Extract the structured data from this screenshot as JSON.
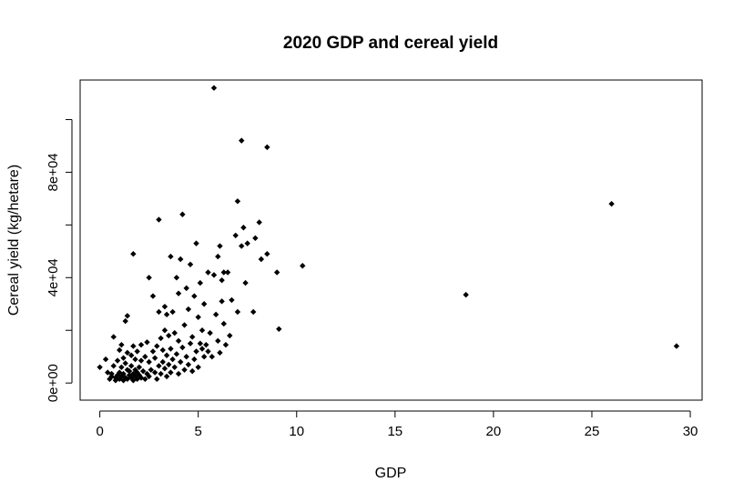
{
  "chart_data": {
    "type": "scatter",
    "title": "2020 GDP and cereal yield",
    "xlabel": "GDP",
    "ylabel": "Cereal yield (kg/hetare)",
    "xlim": [
      -1,
      30.6
    ],
    "ylim": [
      -6500,
      115000
    ],
    "x_ticks": [
      0,
      5,
      10,
      15,
      20,
      25,
      30
    ],
    "x_tick_labels": [
      "0",
      "5",
      "10",
      "15",
      "20",
      "25",
      "30"
    ],
    "y_ticks": [
      0,
      40000,
      80000
    ],
    "y_tick_labels": [
      "0e+00",
      "4e+04",
      "8e+04"
    ],
    "y_minor_ticks": [
      20000,
      60000,
      100000
    ],
    "grid": false,
    "legend": "none",
    "marker_color": "#000000",
    "points": [
      [
        0.0,
        6000
      ],
      [
        0.3,
        9000
      ],
      [
        0.4,
        4000
      ],
      [
        0.5,
        1500
      ],
      [
        0.6,
        2500
      ],
      [
        0.6,
        3500
      ],
      [
        0.7,
        6500
      ],
      [
        0.7,
        17500
      ],
      [
        0.8,
        1000
      ],
      [
        0.8,
        2000
      ],
      [
        0.9,
        3000
      ],
      [
        0.9,
        8500
      ],
      [
        1.0,
        1500
      ],
      [
        1.0,
        4000
      ],
      [
        1.0,
        12500
      ],
      [
        1.1,
        2500
      ],
      [
        1.1,
        6000
      ],
      [
        1.1,
        14500
      ],
      [
        1.2,
        1000
      ],
      [
        1.2,
        3500
      ],
      [
        1.2,
        9500
      ],
      [
        1.3,
        2000
      ],
      [
        1.3,
        7500
      ],
      [
        1.3,
        23500
      ],
      [
        1.4,
        1500
      ],
      [
        1.4,
        5000
      ],
      [
        1.4,
        11500
      ],
      [
        1.4,
        25500
      ],
      [
        1.5,
        3000
      ],
      [
        1.5,
        4500
      ],
      [
        1.6,
        2000
      ],
      [
        1.6,
        6500
      ],
      [
        1.6,
        10500
      ],
      [
        1.7,
        1000
      ],
      [
        1.7,
        3500
      ],
      [
        1.7,
        14000
      ],
      [
        1.7,
        49000
      ],
      [
        1.8,
        2500
      ],
      [
        1.8,
        5000
      ],
      [
        1.8,
        9000
      ],
      [
        1.9,
        1500
      ],
      [
        1.9,
        4000
      ],
      [
        1.9,
        12000
      ],
      [
        2.0,
        3000
      ],
      [
        2.0,
        6000
      ],
      [
        2.1,
        2000
      ],
      [
        2.1,
        8500
      ],
      [
        2.1,
        14500
      ],
      [
        2.2,
        4500
      ],
      [
        2.3,
        1500
      ],
      [
        2.3,
        10000
      ],
      [
        2.4,
        3500
      ],
      [
        2.4,
        15500
      ],
      [
        2.5,
        2500
      ],
      [
        2.5,
        8000
      ],
      [
        2.5,
        40000
      ],
      [
        2.6,
        5000
      ],
      [
        2.7,
        12000
      ],
      [
        2.7,
        33000
      ],
      [
        2.8,
        4000
      ],
      [
        2.8,
        9500
      ],
      [
        2.9,
        1500
      ],
      [
        2.9,
        14000
      ],
      [
        3.0,
        6500
      ],
      [
        3.0,
        27000
      ],
      [
        3.0,
        62000
      ],
      [
        3.1,
        3500
      ],
      [
        3.1,
        17000
      ],
      [
        3.2,
        8000
      ],
      [
        3.2,
        12500
      ],
      [
        3.3,
        5500
      ],
      [
        3.3,
        20000
      ],
      [
        3.3,
        29000
      ],
      [
        3.4,
        2500
      ],
      [
        3.4,
        10500
      ],
      [
        3.4,
        26000
      ],
      [
        3.5,
        7000
      ],
      [
        3.5,
        18000
      ],
      [
        3.6,
        4000
      ],
      [
        3.6,
        13000
      ],
      [
        3.6,
        48000
      ],
      [
        3.7,
        9000
      ],
      [
        3.7,
        27000
      ],
      [
        3.8,
        6000
      ],
      [
        3.8,
        19000
      ],
      [
        3.9,
        11000
      ],
      [
        3.9,
        40000
      ],
      [
        4.0,
        3500
      ],
      [
        4.0,
        16000
      ],
      [
        4.0,
        34000
      ],
      [
        4.1,
        8000
      ],
      [
        4.1,
        47000
      ],
      [
        4.2,
        13500
      ],
      [
        4.2,
        64000
      ],
      [
        4.3,
        5000
      ],
      [
        4.3,
        22000
      ],
      [
        4.4,
        10000
      ],
      [
        4.4,
        36000
      ],
      [
        4.5,
        7000
      ],
      [
        4.5,
        28000
      ],
      [
        4.6,
        15000
      ],
      [
        4.6,
        45000
      ],
      [
        4.7,
        4500
      ],
      [
        4.7,
        17500
      ],
      [
        4.8,
        9000
      ],
      [
        4.8,
        33000
      ],
      [
        4.9,
        12000
      ],
      [
        4.9,
        53000
      ],
      [
        5.0,
        6000
      ],
      [
        5.0,
        25000
      ],
      [
        5.1,
        15000
      ],
      [
        5.1,
        38000
      ],
      [
        5.2,
        13000
      ],
      [
        5.2,
        20000
      ],
      [
        5.3,
        10000
      ],
      [
        5.3,
        30000
      ],
      [
        5.4,
        14500
      ],
      [
        5.5,
        12000
      ],
      [
        5.5,
        42000
      ],
      [
        5.6,
        19000
      ],
      [
        5.7,
        10000
      ],
      [
        5.8,
        112000
      ],
      [
        5.8,
        41000
      ],
      [
        5.9,
        26000
      ],
      [
        6.0,
        48000
      ],
      [
        6.0,
        16000
      ],
      [
        6.1,
        11500
      ],
      [
        6.1,
        52000
      ],
      [
        6.2,
        31000
      ],
      [
        6.2,
        39000
      ],
      [
        6.3,
        22500
      ],
      [
        6.3,
        42000
      ],
      [
        6.4,
        14500
      ],
      [
        6.5,
        42000
      ],
      [
        6.6,
        18000
      ],
      [
        6.7,
        31500
      ],
      [
        6.9,
        56000
      ],
      [
        7.0,
        27000
      ],
      [
        7.0,
        69000
      ],
      [
        7.2,
        92000
      ],
      [
        7.2,
        52000
      ],
      [
        7.3,
        59000
      ],
      [
        7.4,
        38000
      ],
      [
        7.5,
        53000
      ],
      [
        7.8,
        27000
      ],
      [
        7.9,
        55000
      ],
      [
        8.1,
        61000
      ],
      [
        8.2,
        47000
      ],
      [
        8.5,
        89500
      ],
      [
        8.5,
        49000
      ],
      [
        9.0,
        42000
      ],
      [
        9.1,
        20500
      ],
      [
        10.3,
        44500
      ],
      [
        18.6,
        33500
      ],
      [
        26.0,
        68000
      ],
      [
        29.3,
        14000
      ]
    ]
  }
}
